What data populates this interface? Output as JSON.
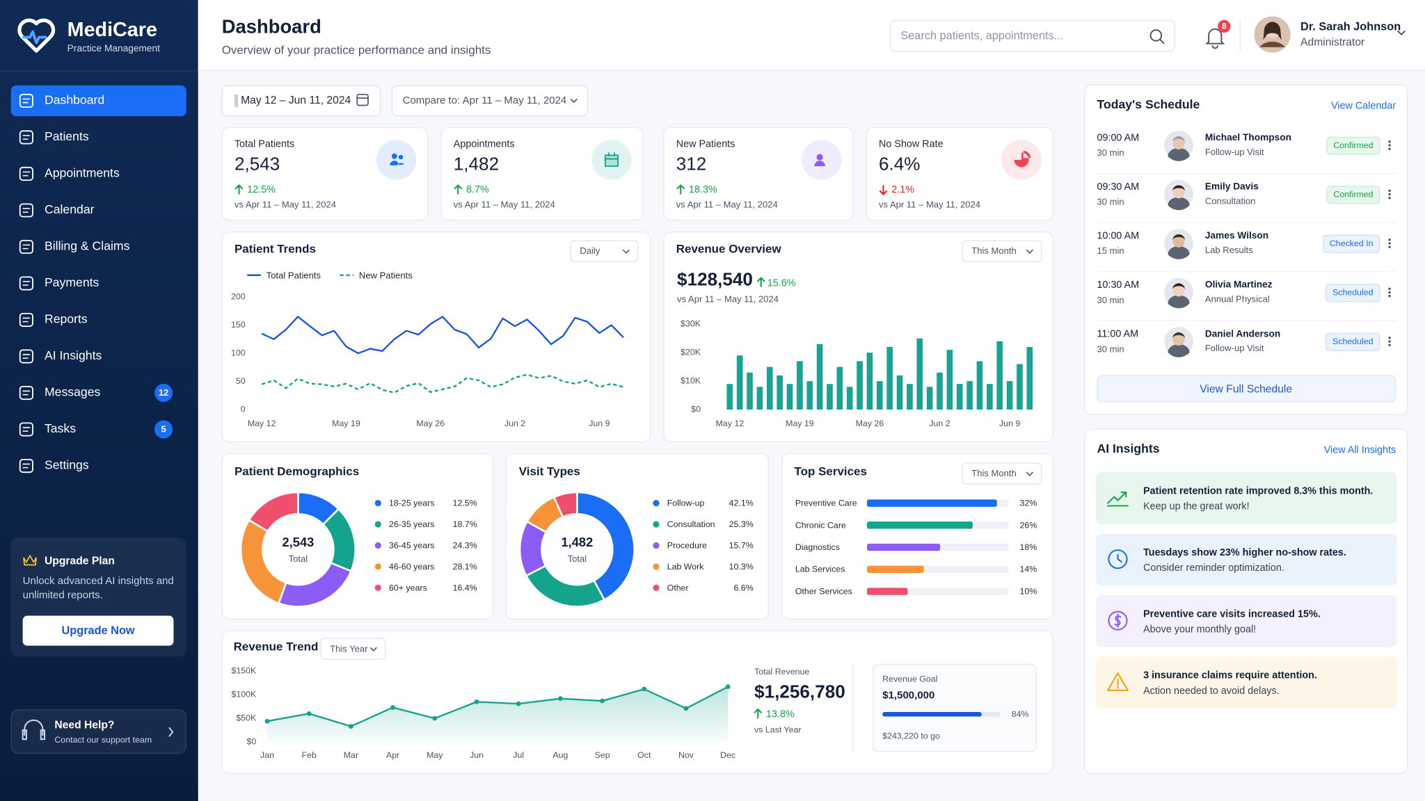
{
  "sidebar": {
    "brand": "MediCare",
    "tagline": "Practice Management",
    "nav": [
      {
        "label": "Dashboard",
        "active": true
      },
      {
        "label": "Patients"
      },
      {
        "label": "Appointments"
      },
      {
        "label": "Calendar"
      },
      {
        "label": "Billing & Claims"
      },
      {
        "label": "Payments"
      },
      {
        "label": "Reports"
      },
      {
        "label": "AI Insights"
      },
      {
        "label": "Messages",
        "badge": "12"
      },
      {
        "label": "Tasks",
        "badge": "5"
      },
      {
        "label": "Settings"
      }
    ],
    "upgrade": {
      "title": "Upgrade Plan",
      "text": "Unlock advanced AI insights and unlimited reports.",
      "button": "Upgrade Now"
    },
    "help": {
      "title": "Need Help?",
      "text": "Contact our support team"
    }
  },
  "header": {
    "title": "Dashboard",
    "subtitle": "Overview of your practice performance and insights",
    "search_placeholder": "Search patients, appointments...",
    "notifications": "8",
    "user": {
      "name": "Dr. Sarah Johnson",
      "role": "Administrator"
    }
  },
  "filters": {
    "date_range": "May 12 – Jun 11, 2024",
    "compare": "Compare to: Apr 11 – May 11, 2024"
  },
  "kpis": [
    {
      "label": "Total Patients",
      "value": "2,543",
      "change": "12.5%",
      "direction": "up",
      "compare": "vs Apr 11 – May 11, 2024",
      "color": "#1a6ef5"
    },
    {
      "label": "Appointments",
      "value": "1,482",
      "change": "8.7%",
      "direction": "up",
      "compare": "vs Apr 11 – May 11, 2024",
      "color": "#14a38b"
    },
    {
      "label": "New Patients",
      "value": "312",
      "change": "18.3%",
      "direction": "up",
      "compare": "vs Apr 11 – May 11, 2024",
      "color": "#8b5cf6"
    },
    {
      "label": "No Show Rate",
      "value": "6.4%",
      "change": "2.1%",
      "direction": "down",
      "compare": "vs Apr 11 – May 11, 2024",
      "color": "#ef4452"
    }
  ],
  "patient_trends": {
    "type": "line",
    "title": "Patient Trends",
    "period": "Daily",
    "categories": [
      "May 12",
      null,
      null,
      null,
      null,
      null,
      null,
      "May 19",
      null,
      null,
      null,
      null,
      null,
      null,
      "May 26",
      null,
      null,
      null,
      null,
      null,
      null,
      "Jun 2",
      null,
      null,
      null,
      null,
      null,
      null,
      "Jun 9",
      null,
      null
    ],
    "series": [
      {
        "name": "Total Patients",
        "color": "#1a56db",
        "dashed": false,
        "values": [
          135,
          125,
          142,
          165,
          148,
          132,
          140,
          112,
          100,
          108,
          104,
          125,
          140,
          133,
          152,
          165,
          142,
          134,
          110,
          126,
          162,
          148,
          160,
          140,
          116,
          131,
          163,
          156,
          136,
          150,
          128
        ]
      },
      {
        "name": "New Patients",
        "color": "#14a38b",
        "dashed": true,
        "values": [
          45,
          52,
          38,
          55,
          46,
          45,
          41,
          46,
          36,
          47,
          35,
          30,
          42,
          47,
          31,
          36,
          41,
          56,
          52,
          40,
          45,
          57,
          62,
          56,
          60,
          50,
          46,
          52,
          40,
          46,
          40
        ]
      }
    ],
    "ylim": [
      0,
      200
    ],
    "yticks": [
      0,
      50,
      100,
      150,
      200
    ],
    "grid": false
  },
  "revenue_overview": {
    "type": "bar",
    "title": "Revenue Overview",
    "period": "This Month",
    "total": "$128,540",
    "change": "15.6%",
    "compare": "vs Apr 11 – May 11, 2024",
    "categories": [
      "May 12",
      null,
      null,
      null,
      null,
      null,
      null,
      "May 19",
      null,
      null,
      null,
      null,
      null,
      null,
      "May 26",
      null,
      null,
      null,
      null,
      null,
      null,
      "Jun 2",
      null,
      null,
      null,
      null,
      null,
      null,
      "Jun 9",
      null,
      null
    ],
    "values": [
      9000,
      19000,
      13000,
      8000,
      15000,
      12000,
      9000,
      17000,
      10000,
      23000,
      9000,
      15000,
      8000,
      17000,
      20000,
      10000,
      22000,
      12000,
      9000,
      25000,
      8000,
      13000,
      21000,
      9000,
      10000,
      17000,
      9000,
      24000,
      10000,
      16000,
      22000
    ],
    "color": "#1aa392",
    "ylim": [
      0,
      30000
    ],
    "yticks": [
      {
        "value": 0,
        "label": "$0"
      },
      {
        "value": 10000,
        "label": "$10K"
      },
      {
        "value": 20000,
        "label": "$20K"
      },
      {
        "value": 30000,
        "label": "$30K"
      }
    ],
    "grid": false
  },
  "patient_demographics": {
    "type": "donut",
    "title": "Patient Demographics",
    "center_value": "2,543",
    "center_label": "Total",
    "categories": [
      "18-25 years",
      "26-35 years",
      "36-45 years",
      "46-60 years",
      "60+ years"
    ],
    "values": [
      12.5,
      18.7,
      24.3,
      28.1,
      16.4
    ],
    "value_labels": [
      "12.5%",
      "18.7%",
      "24.3%",
      "28.1%",
      "16.4%"
    ],
    "colors": [
      "#1a6ef5",
      "#14a38b",
      "#8b5cf6",
      "#f7943a",
      "#f0506e"
    ]
  },
  "visit_types": {
    "type": "donut",
    "title": "Visit Types",
    "center_value": "1,482",
    "center_label": "Total",
    "categories": [
      "Follow-up",
      "Consultation",
      "Procedure",
      "Lab Work",
      "Other"
    ],
    "values": [
      42.1,
      25.3,
      15.7,
      10.3,
      6.6
    ],
    "value_labels": [
      "42.1%",
      "25.3%",
      "15.7%",
      "10.3%",
      "6.6%"
    ],
    "colors": [
      "#1a6ef5",
      "#14a38b",
      "#8b5cf6",
      "#f7943a",
      "#f0506e"
    ]
  },
  "top_services": {
    "type": "hbar",
    "title": "Top Services",
    "period": "This Month",
    "categories": [
      "Preventive Care",
      "Chronic Care",
      "Diagnostics",
      "Lab Services",
      "Other Services"
    ],
    "values": [
      32,
      26,
      18,
      14,
      10
    ],
    "value_labels": [
      "32%",
      "26%",
      "18%",
      "14%",
      "10%"
    ],
    "colors": [
      "#1a6ef5",
      "#14a38b",
      "#8b5cf6",
      "#f7943a",
      "#f0506e"
    ]
  },
  "revenue_trend": {
    "type": "area",
    "title": "Revenue Trend",
    "period": "This Year",
    "categories": [
      "Jan",
      "Feb",
      "Mar",
      "Apr",
      "May",
      "Jun",
      "Jul",
      "Aug",
      "Sep",
      "Oct",
      "Nov",
      "Dec"
    ],
    "values": [
      44000,
      60000,
      33000,
      73000,
      50000,
      85000,
      81000,
      92000,
      87000,
      112000,
      71000,
      117000
    ],
    "color": "#14a38b",
    "ylim": [
      0,
      150000
    ],
    "yticks": [
      {
        "value": 0,
        "label": "$0"
      },
      {
        "value": 50000,
        "label": "$50K"
      },
      {
        "value": 100000,
        "label": "$100K"
      },
      {
        "value": 150000,
        "label": "$150K"
      }
    ],
    "total_label": "Total Revenue",
    "total": "$1,256,780",
    "change": "13.8%",
    "compare": "vs Last Year",
    "goal": {
      "label": "Revenue Goal",
      "value": "$1,500,000",
      "progress": 84,
      "progress_label": "84%",
      "remaining": "$243,220 to go"
    }
  },
  "schedule": {
    "title": "Today's Schedule",
    "link": "View Calendar",
    "items": [
      {
        "time": "09:00 AM",
        "duration": "30 min",
        "name": "Michael Thompson",
        "type": "Follow-up Visit",
        "status": "Confirmed",
        "tone": "green"
      },
      {
        "time": "09:30 AM",
        "duration": "30 min",
        "name": "Emily Davis",
        "type": "Consultation",
        "status": "Confirmed",
        "tone": "green"
      },
      {
        "time": "10:00 AM",
        "duration": "15 min",
        "name": "James Wilson",
        "type": "Lab Results",
        "status": "Checked In",
        "tone": "blue"
      },
      {
        "time": "10:30 AM",
        "duration": "30 min",
        "name": "Olivia Martinez",
        "type": "Annual Physical",
        "status": "Scheduled",
        "tone": "blue"
      },
      {
        "time": "11:00 AM",
        "duration": "30 min",
        "name": "Daniel Anderson",
        "type": "Follow-up Visit",
        "status": "Scheduled",
        "tone": "blue"
      }
    ],
    "button": "View Full Schedule"
  },
  "ai_insights": {
    "title": "AI Insights",
    "link": "View All Insights",
    "items": [
      {
        "title": "Patient retention rate improved 8.3% this month.",
        "text": "Keep up the great work!",
        "tone": "green"
      },
      {
        "title": "Tuesdays show 23% higher no-show rates.",
        "text": "Consider reminder optimization.",
        "tone": "blue"
      },
      {
        "title": "Preventive care visits increased 15%.",
        "text": "Above your monthly goal!",
        "tone": "purple"
      },
      {
        "title": "3 insurance claims require attention.",
        "text": "Action needed to avoid delays.",
        "tone": "orange"
      }
    ]
  }
}
